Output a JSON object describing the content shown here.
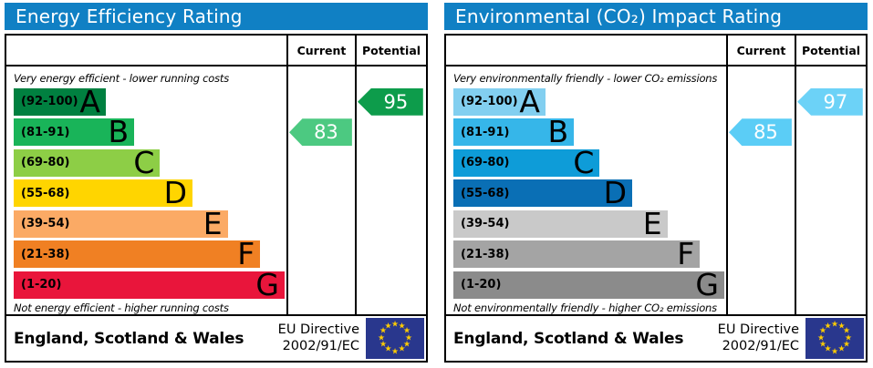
{
  "colors": {
    "title_bar": "#1080C4",
    "flag_bg": "#29378D",
    "flag_star": "#FFCC00",
    "border": "#000000"
  },
  "panels": [
    {
      "title": "Energy Efficiency Rating",
      "columns": {
        "current": "Current",
        "potential": "Potential"
      },
      "top_note": "Very energy efficient - lower running costs",
      "bottom_note": "Not energy efficient - higher running costs",
      "bands": [
        {
          "range": "(92-100)",
          "letter": "A",
          "color": "#008040",
          "width_pct": 34
        },
        {
          "range": "(81-91)",
          "letter": "B",
          "color": "#19B459",
          "width_pct": 44.5
        },
        {
          "range": "(69-80)",
          "letter": "C",
          "color": "#8DCE46",
          "width_pct": 54
        },
        {
          "range": "(55-68)",
          "letter": "D",
          "color": "#FFD500",
          "width_pct": 66
        },
        {
          "range": "(39-54)",
          "letter": "E",
          "color": "#FBAA65",
          "width_pct": 79
        },
        {
          "range": "(21-38)",
          "letter": "F",
          "color": "#F08023",
          "width_pct": 91
        },
        {
          "range": "(1-20)",
          "letter": "G",
          "color": "#E9153B",
          "width_pct": 100
        }
      ],
      "current": {
        "value": "83",
        "band_index": 1,
        "color": "#4CC981"
      },
      "potential": {
        "value": "95",
        "band_index": 0,
        "color": "#0D9C4B"
      },
      "footer": {
        "region": "England, Scotland & Wales",
        "directive_line1": "EU Directive",
        "directive_line2": "2002/91/EC"
      }
    },
    {
      "title": "Environmental (CO₂) Impact Rating",
      "columns": {
        "current": "Current",
        "potential": "Potential"
      },
      "top_note": "Very environmentally friendly - lower CO₂ emissions",
      "bottom_note": "Not environmentally friendly - higher CO₂ emissions",
      "bands": [
        {
          "range": "(92-100)",
          "letter": "A",
          "color": "#82CFF0",
          "width_pct": 34
        },
        {
          "range": "(81-91)",
          "letter": "B",
          "color": "#36B6E9",
          "width_pct": 44.5
        },
        {
          "range": "(69-80)",
          "letter": "C",
          "color": "#0E9CD8",
          "width_pct": 54
        },
        {
          "range": "(55-68)",
          "letter": "D",
          "color": "#0A6FB5",
          "width_pct": 66
        },
        {
          "range": "(39-54)",
          "letter": "E",
          "color": "#C9C9C9",
          "width_pct": 79
        },
        {
          "range": "(21-38)",
          "letter": "F",
          "color": "#A4A4A4",
          "width_pct": 91
        },
        {
          "range": "(1-20)",
          "letter": "G",
          "color": "#8B8B8B",
          "width_pct": 100
        }
      ],
      "current": {
        "value": "85",
        "band_index": 1,
        "color": "#5BCDF6"
      },
      "potential": {
        "value": "97",
        "band_index": 0,
        "color": "#6CD2F7"
      },
      "footer": {
        "region": "England, Scotland & Wales",
        "directive_line1": "EU Directive",
        "directive_line2": "2002/91/EC"
      }
    }
  ],
  "chart_data": [
    {
      "type": "bar",
      "title": "Energy Efficiency Rating",
      "categories": [
        "A",
        "B",
        "C",
        "D",
        "E",
        "F",
        "G"
      ],
      "band_ranges": [
        "92-100",
        "81-91",
        "69-80",
        "55-68",
        "39-54",
        "21-38",
        "1-20"
      ],
      "bar_lengths_pct": [
        34,
        44.5,
        54,
        66,
        79,
        91,
        100
      ],
      "current_rating": 83,
      "current_band": "B",
      "potential_rating": 95,
      "potential_band": "A",
      "top_annotation": "Very energy efficient - lower running costs",
      "bottom_annotation": "Not energy efficient - higher running costs",
      "footer": "England, Scotland & Wales — EU Directive 2002/91/EC"
    },
    {
      "type": "bar",
      "title": "Environmental (CO₂) Impact Rating",
      "categories": [
        "A",
        "B",
        "C",
        "D",
        "E",
        "F",
        "G"
      ],
      "band_ranges": [
        "92-100",
        "81-91",
        "69-80",
        "55-68",
        "39-54",
        "21-38",
        "1-20"
      ],
      "bar_lengths_pct": [
        34,
        44.5,
        54,
        66,
        79,
        91,
        100
      ],
      "current_rating": 85,
      "current_band": "B",
      "potential_rating": 97,
      "potential_band": "A",
      "top_annotation": "Very environmentally friendly - lower CO₂ emissions",
      "bottom_annotation": "Not environmentally friendly - higher CO₂ emissions",
      "footer": "England, Scotland & Wales — EU Directive 2002/91/EC"
    }
  ]
}
